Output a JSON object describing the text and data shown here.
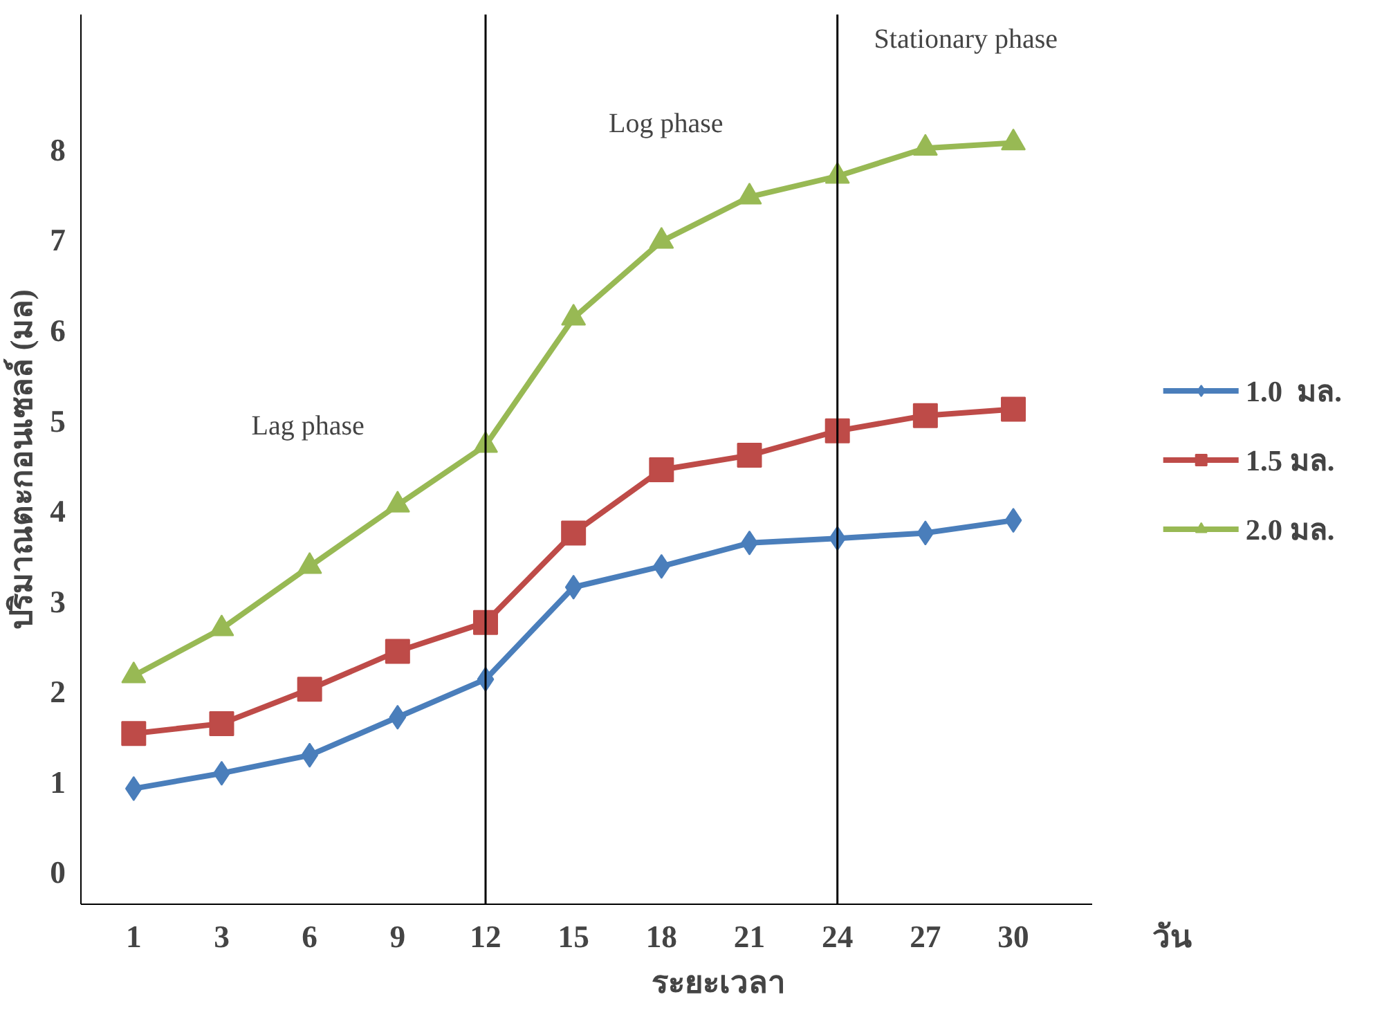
{
  "chart_data": {
    "type": "line",
    "xlabel": "ระยะเวลา",
    "ylabel": "ปริมาณตะกอนเซลล์ (มล)",
    "categories": [
      "1",
      "3",
      "6",
      "9",
      "12",
      "15",
      "18",
      "21",
      "24",
      "27",
      "30"
    ],
    "series": [
      {
        "name": "1.0  มล.",
        "color": "#4a7ebb",
        "marker": "diamond",
        "values": [
          0.93,
          1.1,
          1.3,
          1.72,
          2.14,
          3.16,
          3.39,
          3.65,
          3.7,
          3.76,
          3.9
        ]
      },
      {
        "name": "1.5 มล.",
        "color": "#be4b48",
        "marker": "square",
        "values": [
          1.54,
          1.65,
          2.03,
          2.45,
          2.77,
          3.76,
          4.46,
          4.62,
          4.89,
          5.06,
          5.13
        ]
      },
      {
        "name": "2.0 มล.",
        "color": "#98b954",
        "marker": "triangle",
        "values": [
          2.18,
          2.7,
          3.39,
          4.07,
          4.73,
          6.14,
          6.99,
          7.48,
          7.71,
          8.02,
          8.08
        ]
      }
    ],
    "ylim": [
      -0.35,
      9.5
    ],
    "yticks": [
      0,
      1,
      2,
      3,
      4,
      5,
      6,
      7,
      8
    ],
    "ref_lines": [
      {
        "axis": "x",
        "value": "12",
        "color": "#000000"
      },
      {
        "axis": "x",
        "value": "24",
        "color": "#000000"
      }
    ],
    "annotations": [
      "Lag phase",
      "Log phase",
      "Stationary phase",
      "วัน"
    ],
    "grid": false,
    "legend": "right",
    "line_style": "solid"
  }
}
